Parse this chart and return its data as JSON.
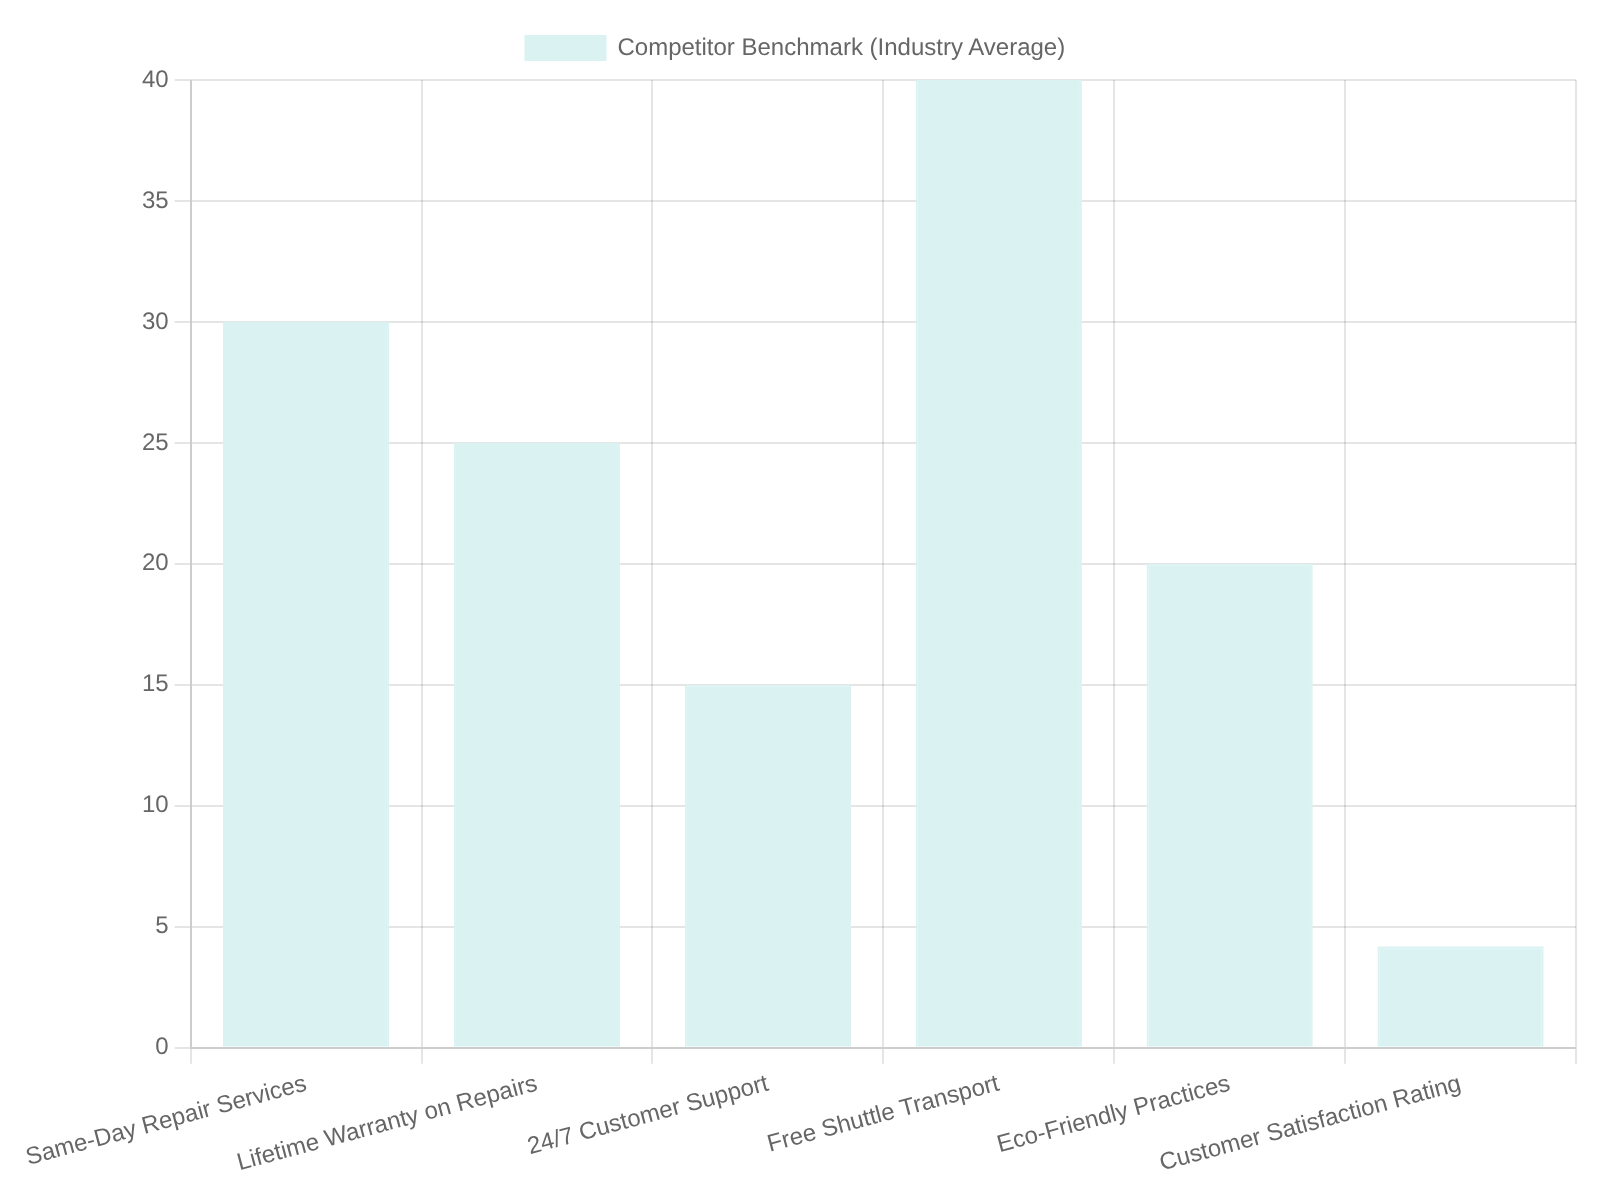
{
  "chart_data": {
    "type": "bar",
    "categories": [
      "Same-Day Repair Services",
      "Lifetime Warranty on Repairs",
      "24/7 Customer Support",
      "Free Shuttle Transport",
      "Eco-Friendly Practices",
      "Customer Satisfaction Rating"
    ],
    "series": [
      {
        "name": "Competitor Benchmark (Industry Average)",
        "color": "#dbf2f2",
        "values": [
          30,
          25,
          15,
          40,
          20,
          4.2
        ]
      }
    ],
    "ylim": [
      0,
      40
    ],
    "yticks": [
      0,
      5,
      10,
      15,
      20,
      25,
      30,
      35,
      40
    ],
    "grid": true,
    "legend": "top"
  }
}
